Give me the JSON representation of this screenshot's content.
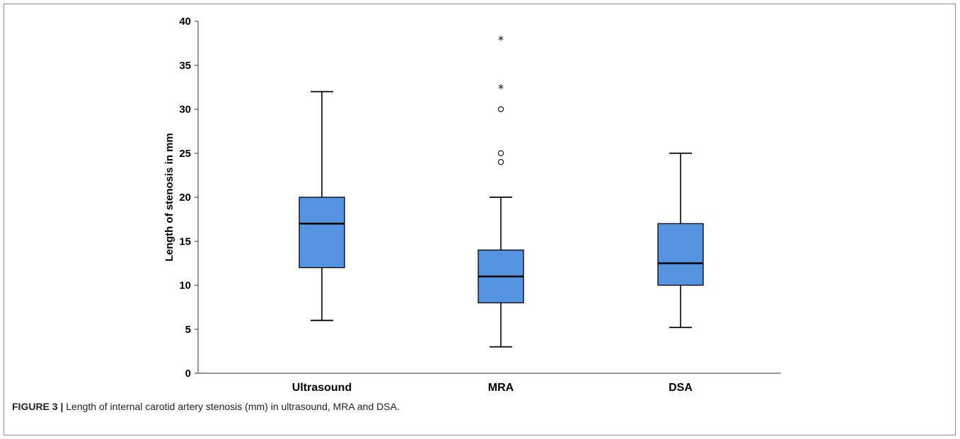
{
  "caption": {
    "label": "FIGURE 3 |",
    "text": " Length of internal carotid artery stenosis (mm) in ultrasound, MRA and DSA."
  },
  "chart_data": {
    "type": "boxplot",
    "title": "",
    "xlabel": "",
    "ylabel": "Length of stenosis in mm",
    "ylim": [
      0,
      40
    ],
    "yticks": [
      0,
      5,
      10,
      15,
      20,
      25,
      30,
      35,
      40
    ],
    "categories": [
      "Ultrasound",
      "MRA",
      "DSA"
    ],
    "box_color": "#5494e0",
    "boxes": [
      {
        "category": "Ultrasound",
        "min": 6,
        "q1": 12,
        "median": 17,
        "q3": 20,
        "max": 32,
        "outliers": [],
        "extremes": []
      },
      {
        "category": "MRA",
        "min": 3,
        "q1": 8,
        "median": 11,
        "q3": 14,
        "max": 20,
        "outliers": [
          24,
          25,
          30
        ],
        "extremes": [
          32.5,
          38
        ]
      },
      {
        "category": "DSA",
        "min": 5.2,
        "q1": 10,
        "median": 12.5,
        "q3": 17,
        "max": 25,
        "outliers": [],
        "extremes": []
      }
    ]
  }
}
